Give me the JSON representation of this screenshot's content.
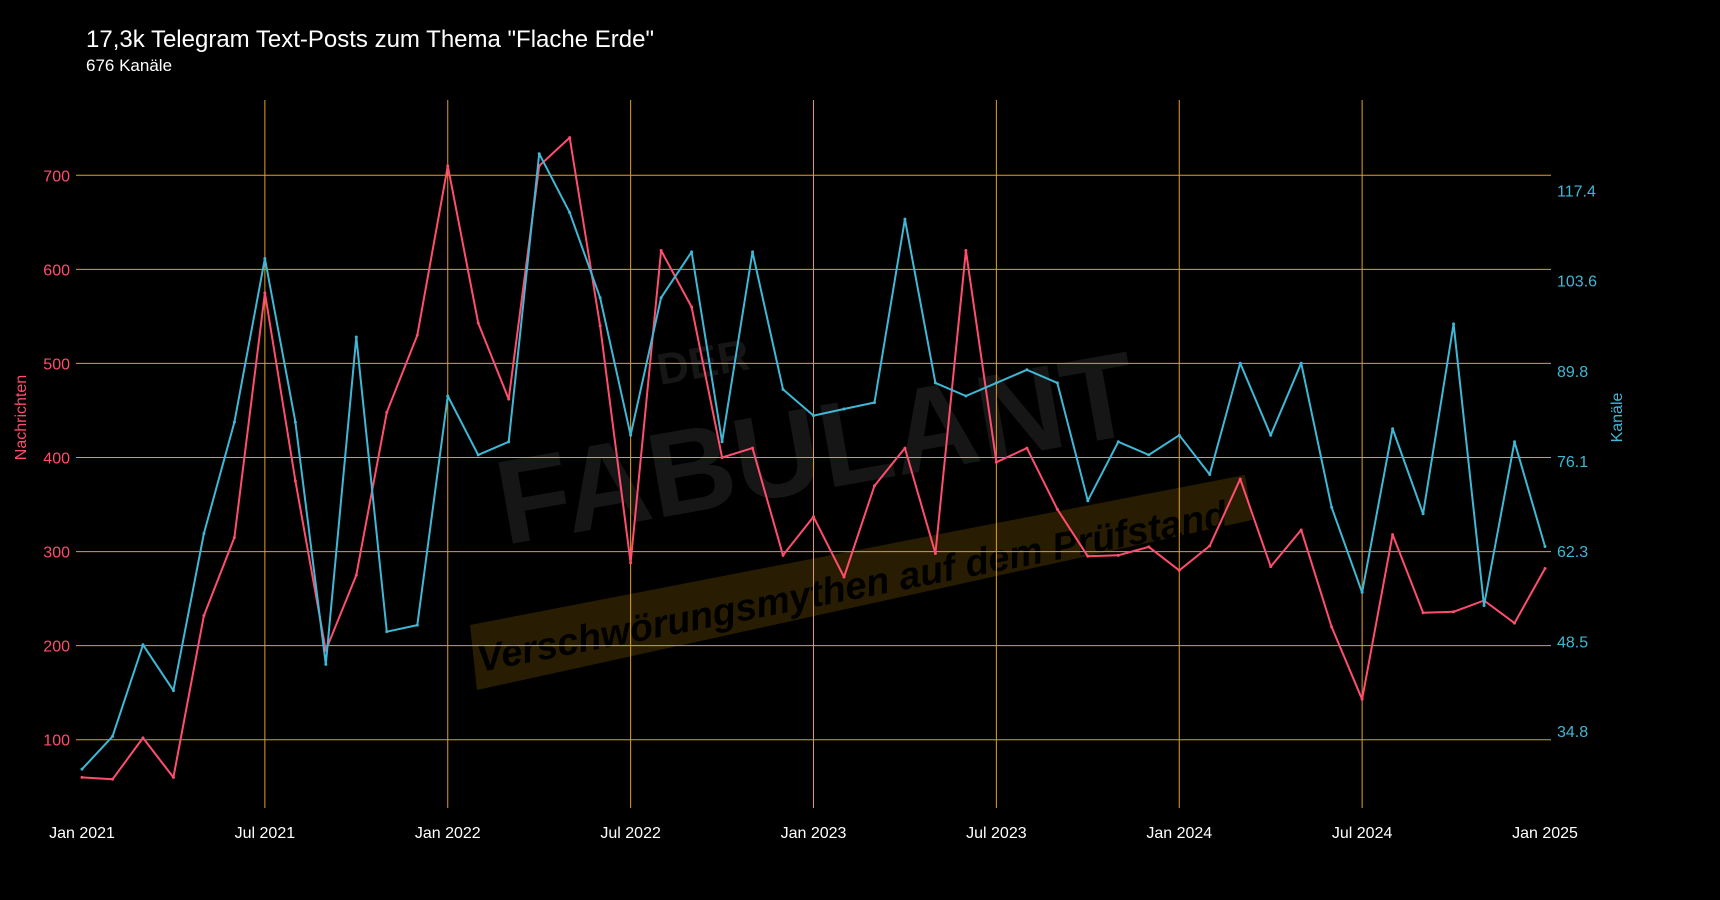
{
  "title": "17,3k Telegram Text-Posts zum Thema \"Flache Erde\"",
  "subtitle": "676 Kanäle",
  "watermark": {
    "small": "DER",
    "big": "FABULANT",
    "tagline": "Verschwörungsmythen auf dem Prüfstand"
  },
  "colors": {
    "background": "#000000",
    "grid": "#e0a020",
    "messages": "#ff4d6d",
    "channels": "#3fb8d6",
    "axis_text": "#ffffff"
  },
  "chart_data": {
    "type": "line",
    "x_start": "2021-01",
    "x_end": "2025-01",
    "x_tick_labels": [
      "Jan 2021",
      "Jul 2021",
      "Jan 2022",
      "Jul 2022",
      "Jan 2023",
      "Jul 2023",
      "Jan 2024",
      "Jul 2024",
      "Jan 2025"
    ],
    "y_left": {
      "label": "Nachrichten",
      "range": [
        20,
        780
      ],
      "ticks": [
        100,
        200,
        300,
        400,
        500,
        600,
        700
      ],
      "tick_labels": [
        "100",
        "200",
        "300",
        "400",
        "500",
        "600",
        "700"
      ]
    },
    "y_right": {
      "label": "Kanäle",
      "range": [
        22.0,
        131.2
      ],
      "ticks": [
        34.8,
        48.5,
        62.3,
        76.1,
        89.8,
        103.6,
        117.4
      ],
      "tick_labels": [
        "34.8",
        "48.5",
        "62.3",
        "76.1",
        "89.8",
        "103.6",
        "117.4"
      ]
    },
    "grid": true,
    "series": [
      {
        "name": "Nachrichten",
        "axis": "left",
        "values": [
          60,
          58,
          102,
          60,
          232,
          315,
          575,
          375,
          195,
          275,
          448,
          530,
          710,
          543,
          462,
          710,
          740,
          540,
          288,
          620,
          560,
          400,
          410,
          296,
          337,
          273,
          370,
          410,
          298,
          620,
          395,
          410,
          345,
          295,
          296,
          305,
          280,
          306,
          377,
          284,
          323,
          220,
          143,
          318,
          235,
          236,
          248,
          224,
          282
        ]
      },
      {
        "name": "Kanäle",
        "axis": "right",
        "values": [
          29,
          34,
          48,
          41,
          65,
          82,
          107,
          82,
          45,
          95,
          50,
          51,
          86,
          77,
          79,
          123,
          114,
          101,
          80,
          101,
          108,
          79,
          108,
          87,
          83,
          84,
          85,
          113,
          88,
          86,
          88,
          90,
          88,
          70,
          79,
          77,
          80,
          74,
          91,
          80,
          91,
          69,
          56,
          81,
          68,
          97,
          54,
          79,
          63
        ]
      }
    ]
  }
}
